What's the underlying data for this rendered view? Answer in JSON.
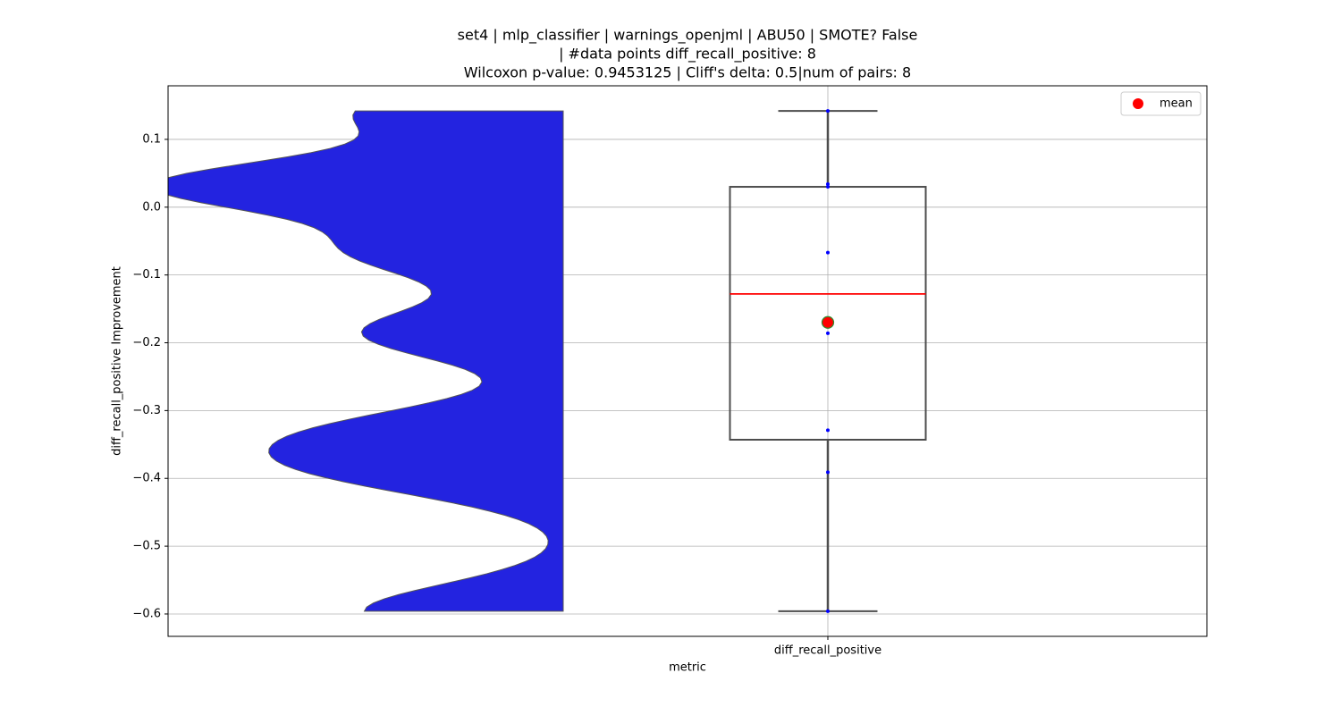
{
  "chart_data": {
    "type": "box",
    "title": [
      "set4 | mlp_classifier | warnings_openjml | ABU50 | SMOTE? False",
      "| #data points diff_recall_positive: 8",
      "Wilcoxon p-value: 0.9453125 | Cliff's delta: 0.5|num of pairs: 8"
    ],
    "xlabel": "metric",
    "ylabel": "diff_recall_positive Improvement",
    "categories": [
      "diff_recall_positive"
    ],
    "points": [
      0.142,
      0.034,
      0.03,
      -0.067,
      -0.186,
      -0.329,
      -0.391,
      -0.596
    ],
    "box": {
      "whisker_high": 0.142,
      "q3": 0.03,
      "median": -0.128,
      "q1": -0.343,
      "whisker_low": -0.596,
      "mean": -0.17
    },
    "ylim": [
      -0.633,
      0.179
    ],
    "yticks": [
      0.1,
      {
        "value": 0,
        "label": "0.0"
      },
      {
        "value": -0.1,
        "label": "−0.1"
      },
      {
        "value": -0.2,
        "label": "−0.2"
      },
      {
        "value": -0.3,
        "label": "−0.3"
      },
      {
        "value": -0.4,
        "label": "−0.4"
      },
      {
        "value": -0.5,
        "label": "−0.5"
      },
      {
        "value": -0.6,
        "label": "−0.6"
      }
    ],
    "grid": true,
    "violin_color": "#2323e0",
    "box_color": "#4d4d4d",
    "median_color": "#ff0000",
    "point_color": "#0000ff",
    "mean_color": "#ff0000",
    "mean_edge_color": "#2e8b2e",
    "legend": {
      "label": "mean",
      "position": "upper right"
    }
  }
}
